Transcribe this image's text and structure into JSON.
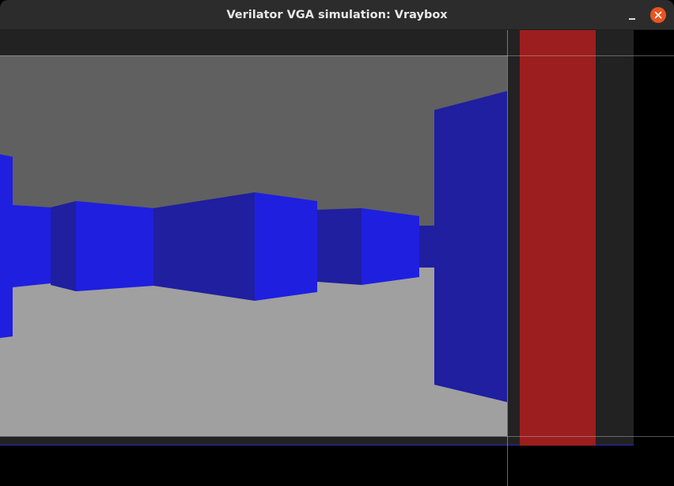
{
  "window": {
    "title": "Verilator VGA simulation: Vraybox"
  },
  "colors": {
    "titlebar": "#2c2c2c",
    "close_button": "#e95420",
    "ceiling": "#606060",
    "floor": "#a0a0a0",
    "wall_light": "#1f1fe0",
    "wall_dark": "#1f1fa0",
    "overscan": "#222222",
    "red_column": "#9c1e1e",
    "background": "#000000"
  },
  "icons": {
    "minimize": "minimize-icon",
    "close": "close-icon"
  }
}
